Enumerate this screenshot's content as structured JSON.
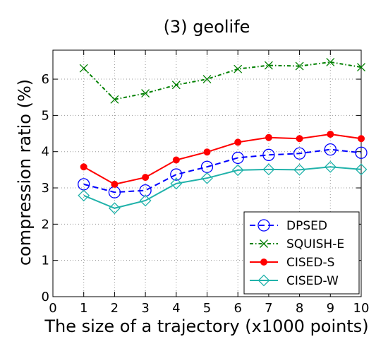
{
  "chart_data": {
    "type": "line",
    "title": "(3) geolife",
    "xlabel": "The size of a trajectory (x1000 points)",
    "ylabel": "compression ratio (%)",
    "x": [
      1,
      2,
      3,
      4,
      5,
      6,
      7,
      8,
      9,
      10
    ],
    "xlim": [
      0,
      10
    ],
    "ylim": [
      0,
      6.8
    ],
    "xticks": [
      "0",
      "1",
      "2",
      "3",
      "4",
      "5",
      "6",
      "7",
      "8",
      "9",
      "10"
    ],
    "yticks": [
      "0",
      "1",
      "2",
      "3",
      "4",
      "5",
      "6"
    ],
    "grid": true,
    "legend_position": "lower-right",
    "series": [
      {
        "name": "DPSED",
        "values": [
          3.1,
          2.88,
          2.93,
          3.37,
          3.58,
          3.83,
          3.91,
          3.95,
          4.06,
          3.97
        ],
        "color": "#0000ff",
        "linestyle": "dashed",
        "marker": "circle-open"
      },
      {
        "name": "SQUISH-E",
        "values": [
          6.3,
          5.44,
          5.61,
          5.84,
          6.0,
          6.28,
          6.38,
          6.36,
          6.47,
          6.33
        ],
        "color": "#008000",
        "linestyle": "dashdot",
        "marker": "x"
      },
      {
        "name": "CISED-S",
        "values": [
          3.58,
          3.1,
          3.29,
          3.77,
          3.99,
          4.26,
          4.39,
          4.36,
          4.48,
          4.36
        ],
        "color": "#ff0000",
        "linestyle": "solid",
        "marker": "circle-filled"
      },
      {
        "name": "CISED-W",
        "values": [
          2.79,
          2.44,
          2.65,
          3.12,
          3.27,
          3.49,
          3.51,
          3.5,
          3.58,
          3.51
        ],
        "color": "#20b2aa",
        "linestyle": "solid",
        "marker": "diamond-open"
      }
    ]
  }
}
